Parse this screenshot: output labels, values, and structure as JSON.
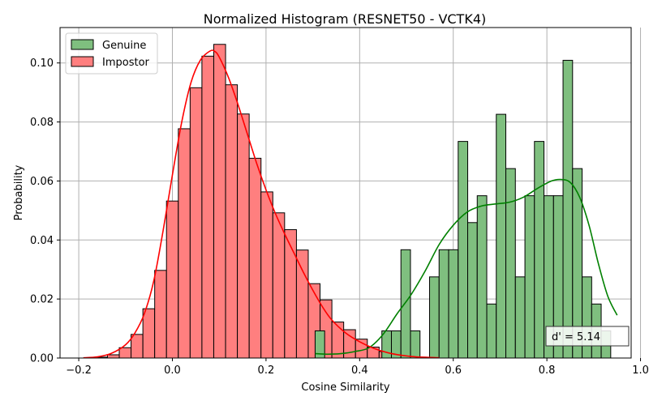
{
  "chart_data": {
    "type": "histogram",
    "title": "Normalized Histogram (RESNET50 - VCTK4)",
    "xlabel": "Cosine Similarity",
    "ylabel": "Probability",
    "xlim": [
      -0.24,
      0.98
    ],
    "ylim": [
      0,
      0.112
    ],
    "xticks": [
      -0.2,
      0.0,
      0.2,
      0.4,
      0.6,
      0.8,
      1.0
    ],
    "xtick_labels": [
      "−0.2",
      "0.0",
      "0.2",
      "0.4",
      "0.6",
      "0.8",
      "1.0"
    ],
    "yticks": [
      0.0,
      0.02,
      0.04,
      0.06,
      0.08,
      0.1
    ],
    "ytick_labels": [
      "0.00",
      "0.02",
      "0.04",
      "0.06",
      "0.08",
      "0.10"
    ],
    "grid": true,
    "legend_position": "upper left",
    "annotation": "d' = 5.14",
    "series": [
      {
        "name": "Genuine",
        "color": "#008000",
        "fill": "#7fbf7f",
        "bin_width": 0.02037,
        "bin_starts": [
          0.3049,
          0.3253,
          0.3457,
          0.366,
          0.3864,
          0.4068,
          0.4271,
          0.4475,
          0.4679,
          0.4882,
          0.5086,
          0.529,
          0.5494,
          0.5697,
          0.5901,
          0.6105,
          0.6308,
          0.6512,
          0.6716,
          0.6919,
          0.7123,
          0.7327,
          0.7531,
          0.7734,
          0.7938,
          0.8142,
          0.8345,
          0.8549,
          0.8753,
          0.8956,
          0.916
        ],
        "values": [
          0.0092,
          0,
          0,
          0,
          0,
          0,
          0,
          0.0092,
          0.0092,
          0.0367,
          0.0092,
          0,
          0.0275,
          0.0367,
          0.0367,
          0.0734,
          0.0459,
          0.055,
          0.0183,
          0.0826,
          0.0642,
          0.0275,
          0.055,
          0.0734,
          0.055,
          0.055,
          0.1009,
          0.0642,
          0.0275,
          0.0183,
          0.0092
        ],
        "kde": {
          "x": [
            0.305,
            0.33,
            0.36,
            0.39,
            0.42,
            0.45,
            0.48,
            0.51,
            0.54,
            0.57,
            0.6,
            0.63,
            0.66,
            0.69,
            0.72,
            0.75,
            0.78,
            0.81,
            0.83,
            0.85,
            0.87,
            0.89,
            0.91,
            0.93,
            0.95
          ],
          "y": [
            0.0015,
            0.0013,
            0.0015,
            0.0022,
            0.0035,
            0.008,
            0.015,
            0.0215,
            0.0295,
            0.0385,
            0.045,
            0.0495,
            0.0515,
            0.0522,
            0.0528,
            0.0545,
            0.0575,
            0.06,
            0.0605,
            0.0595,
            0.0545,
            0.045,
            0.032,
            0.021,
            0.0145
          ]
        }
      },
      {
        "name": "Impostor",
        "color": "#ff0000",
        "fill": "#ff7f7f",
        "bin_width": 0.02523,
        "bin_starts": [
          -0.1892,
          -0.164,
          -0.1387,
          -0.1135,
          -0.0883,
          -0.063,
          -0.0378,
          -0.0126,
          0.0127,
          0.0379,
          0.0631,
          0.0884,
          0.1136,
          0.1388,
          0.1641,
          0.1893,
          0.2145,
          0.2398,
          0.265,
          0.2902,
          0.3155,
          0.3407,
          0.3659,
          0.3912,
          0.4164,
          0.4416,
          0.4669,
          0.4921,
          0.5173,
          0.5426
        ],
        "values": [
          0.0001,
          0.0003,
          0.0011,
          0.0035,
          0.008,
          0.0167,
          0.0297,
          0.0532,
          0.0777,
          0.0916,
          0.1023,
          0.1063,
          0.0926,
          0.0827,
          0.0677,
          0.0563,
          0.0492,
          0.0435,
          0.0366,
          0.0252,
          0.0197,
          0.0122,
          0.0096,
          0.0064,
          0.0037,
          0.0022,
          0.0013,
          0.0006,
          0.0003,
          0.0001
        ],
        "kde": {
          "x": [
            -0.19,
            -0.16,
            -0.13,
            -0.1,
            -0.08,
            -0.06,
            -0.04,
            -0.02,
            0.0,
            0.02,
            0.04,
            0.06,
            0.08,
            0.09,
            0.1,
            0.12,
            0.14,
            0.16,
            0.18,
            0.2,
            0.22,
            0.24,
            0.26,
            0.28,
            0.3,
            0.32,
            0.34,
            0.37,
            0.4,
            0.43,
            0.46,
            0.49,
            0.52,
            0.57
          ],
          "y": [
            0.0001,
            0.0004,
            0.0016,
            0.0045,
            0.0085,
            0.015,
            0.026,
            0.043,
            0.062,
            0.08,
            0.0935,
            0.101,
            0.104,
            0.104,
            0.102,
            0.095,
            0.086,
            0.076,
            0.066,
            0.057,
            0.049,
            0.042,
            0.0355,
            0.029,
            0.023,
            0.0175,
            0.013,
            0.0085,
            0.0055,
            0.0033,
            0.0018,
            0.0009,
            0.0004,
            0.0001
          ]
        }
      }
    ]
  }
}
